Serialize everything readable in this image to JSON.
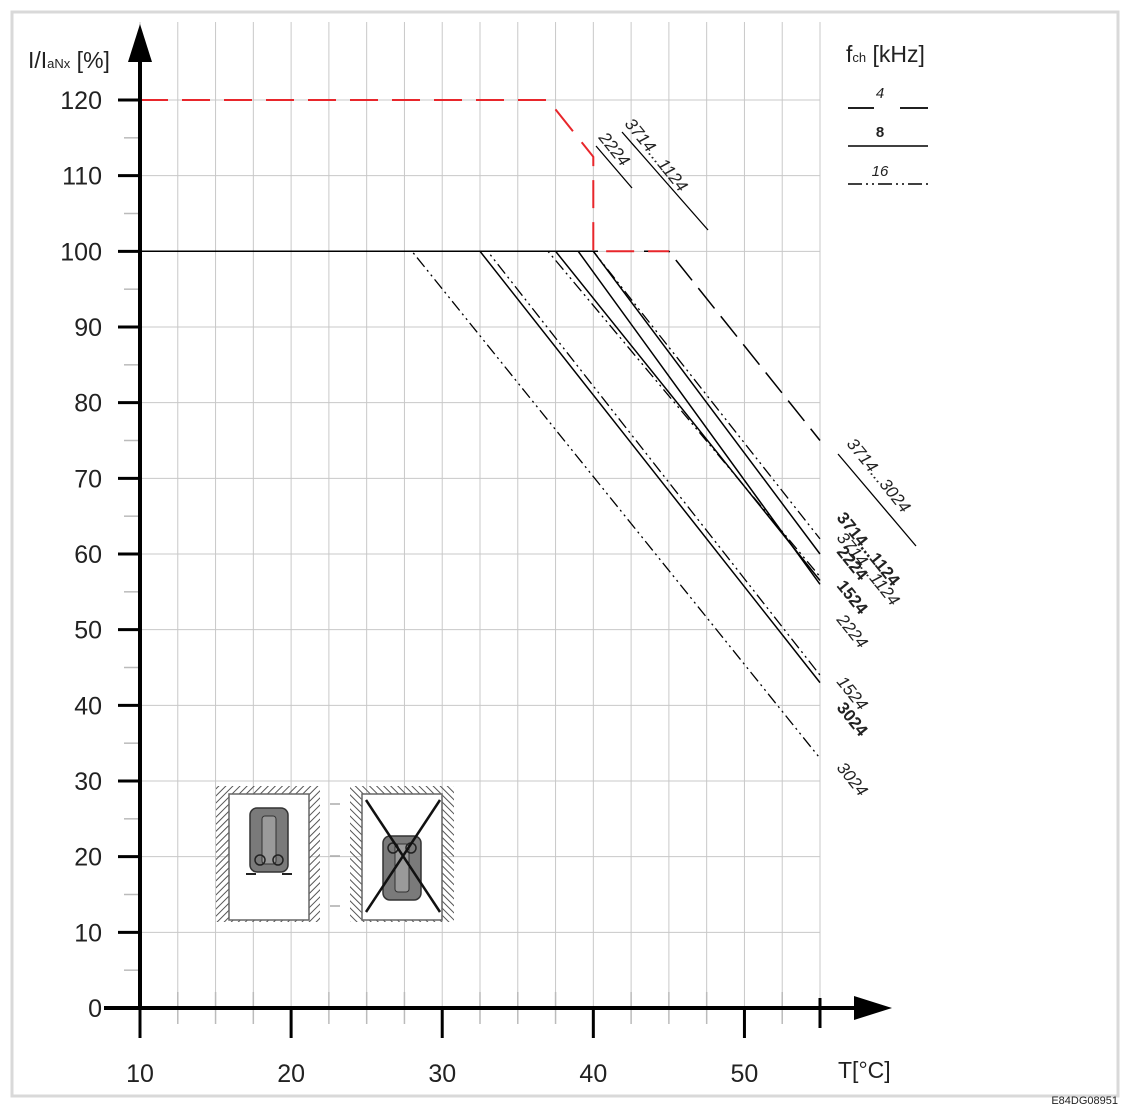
{
  "chart_data": {
    "type": "line",
    "ylabel_main": "I/I",
    "ylabel_sub": "aNx",
    "ylabel_unit": " [%]",
    "xlabel": "T[°C]",
    "freq_label_main": "f",
    "freq_label_sub": "ch",
    "freq_label_unit": " [kHz]",
    "freq_legend": [
      {
        "label": "4",
        "style": "long-dash"
      },
      {
        "label": "8",
        "style": "solid"
      },
      {
        "label": "16",
        "style": "dash-dot-dot"
      }
    ],
    "xlim": [
      10,
      55
    ],
    "ylim": [
      0,
      120
    ],
    "xticks": [
      "10",
      "20",
      "30",
      "40",
      "50"
    ],
    "yticks": [
      "0",
      "10",
      "20",
      "30",
      "40",
      "50",
      "60",
      "70",
      "80",
      "90",
      "100",
      "110",
      "120"
    ],
    "image_code": "E84DG08951",
    "series": [
      {
        "name": "3714...1124",
        "label_top": "3714...1124",
        "freq": "4",
        "style": "red-dash",
        "color": "#e8262b",
        "x": [
          10,
          37,
          40,
          40,
          45
        ],
        "y": [
          120,
          120,
          112.5,
          100,
          100
        ]
      },
      {
        "name": "2224",
        "label_top": "2224",
        "freq": "4",
        "style": "red-dash",
        "color": "#e8262b"
      },
      {
        "name": "3714...3024",
        "label_end": "3714...3024",
        "freq": "4",
        "style": "long-dash",
        "color": "#000000",
        "x": [
          10,
          45,
          55
        ],
        "y": [
          100,
          100,
          75
        ]
      },
      {
        "name": "3714...1124",
        "label_end": "3714...1124",
        "freq": "8",
        "style": "solid",
        "color": "#000000",
        "x": [
          10,
          40,
          55
        ],
        "y": [
          100,
          100,
          60
        ]
      },
      {
        "name": "2224",
        "label_end": "2224",
        "freq": "8",
        "style": "solid",
        "color": "#000000",
        "x": [
          10,
          39,
          55
        ],
        "y": [
          100,
          100,
          56
        ]
      },
      {
        "name": "1524",
        "label_end": "1524",
        "freq": "8",
        "style": "solid",
        "color": "#000000",
        "x": [
          10,
          37.5,
          55
        ],
        "y": [
          100,
          100,
          56.5
        ]
      },
      {
        "name": "3024",
        "label_end": "3024",
        "freq": "8",
        "style": "solid",
        "color": "#000000",
        "x": [
          10,
          32.5,
          55
        ],
        "y": [
          100,
          100,
          43
        ]
      },
      {
        "name": "3714...1124",
        "label_end": "3714...1124",
        "freq": "16",
        "style": "dash-dot-dot",
        "color": "#000000",
        "x": [
          10,
          40,
          55
        ],
        "y": [
          100,
          100,
          62
        ]
      },
      {
        "name": "2224",
        "label_end": "2224",
        "freq": "16",
        "style": "dash-dot-dot",
        "color": "#000000",
        "x": [
          10,
          37,
          55
        ],
        "y": [
          100,
          100,
          57
        ]
      },
      {
        "name": "1524",
        "label_end": "1524",
        "freq": "16",
        "style": "dash-dot-dot",
        "color": "#000000",
        "x": [
          10,
          33,
          55
        ],
        "y": [
          100,
          100,
          44
        ]
      },
      {
        "name": "3024",
        "label_end": "3024",
        "freq": "16",
        "style": "dash-dot-dot",
        "color": "#000000",
        "x": [
          10,
          28,
          55
        ],
        "y": [
          100,
          100,
          33
        ]
      }
    ],
    "end_labels": [
      {
        "text": "3714...3024",
        "bold": false,
        "italic": true
      },
      {
        "text": "3714...1124",
        "bold": true,
        "italic": false
      },
      {
        "text": "3714...1124",
        "bold": false,
        "italic": true
      },
      {
        "text": "2224",
        "bold": true,
        "italic": false
      },
      {
        "text": "1524",
        "bold": true,
        "italic": false
      },
      {
        "text": "2224",
        "bold": false,
        "italic": true
      },
      {
        "text": "1524",
        "bold": false,
        "italic": true
      },
      {
        "text": "3024",
        "bold": true,
        "italic": false
      },
      {
        "text": "3024",
        "bold": false,
        "italic": true
      }
    ],
    "top_labels": [
      {
        "text": "3714...1124"
      },
      {
        "text": "2224"
      }
    ],
    "grid": true,
    "colors": {
      "axis": "#000000",
      "grid": "#c8c8c8",
      "red": "#e8262b",
      "frame": "#d9d9d9",
      "mount_fill": "#7a7a7a"
    }
  }
}
